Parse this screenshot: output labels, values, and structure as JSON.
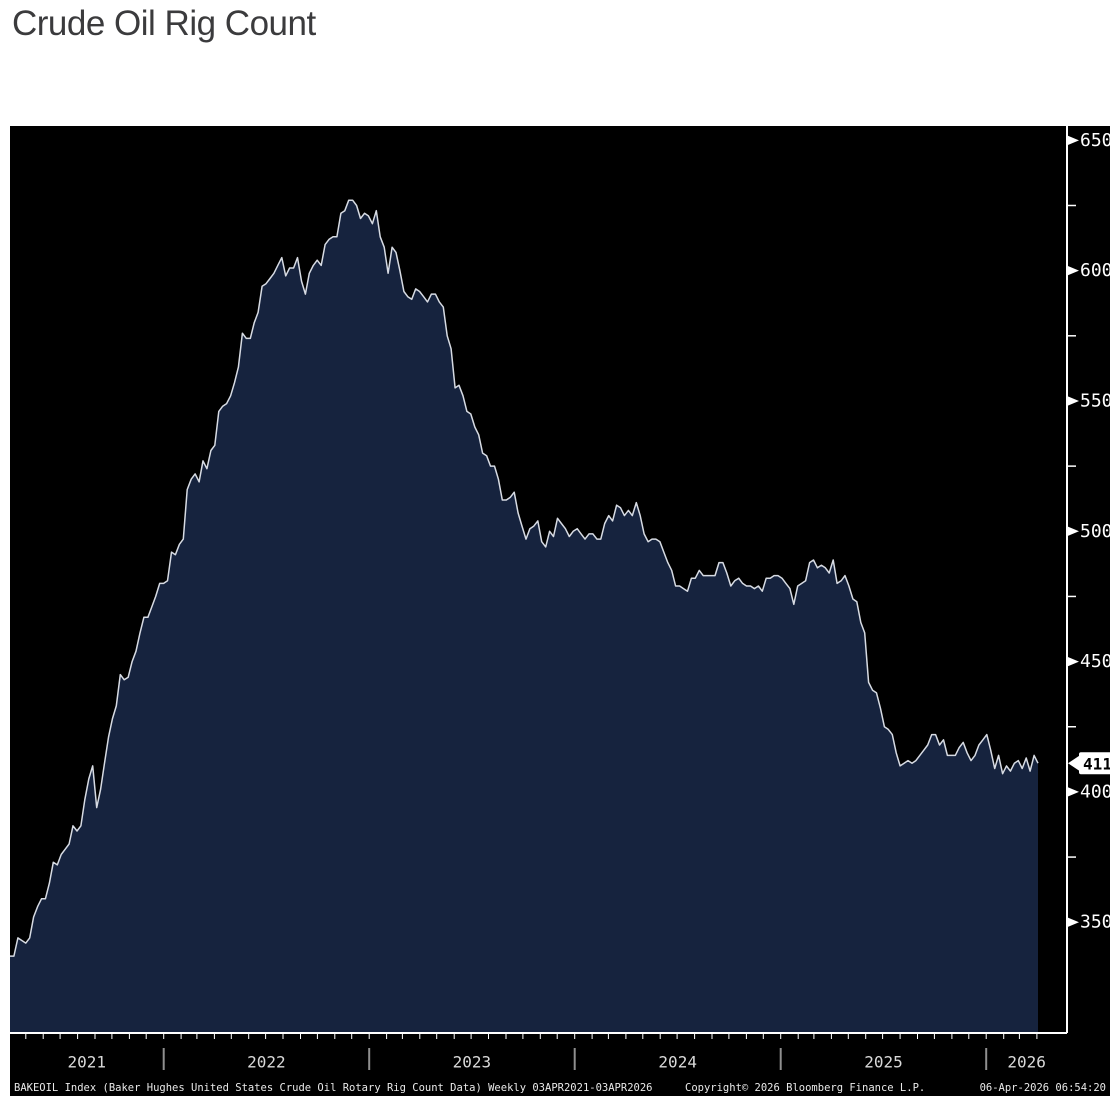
{
  "page": {
    "title": "Crude Oil Rig Count"
  },
  "chart_data": {
    "type": "area",
    "title": "Crude Oil Rig Count",
    "frequency": "weekly",
    "x_start": "2021-04-03",
    "x_end": "2026-04-03",
    "x_year_labels": [
      "2021",
      "2022",
      "2023",
      "2024",
      "2025",
      "2026"
    ],
    "y_ticks_major": [
      350,
      400,
      450,
      500,
      550,
      600,
      650
    ],
    "y_ticks_minor": [
      375,
      425,
      475,
      525,
      575,
      625
    ],
    "ylim": [
      307.5,
      655.5
    ],
    "grid": false,
    "legend_position": "none",
    "last_value": 411,
    "colors": {
      "background": "#000000",
      "area_fill": "#16233e",
      "line": "#d7dbe3",
      "axis": "#ffffff",
      "year_label": "#d9d9d9",
      "separator": "#8f8f8f",
      "flag_bg": "#ffffff",
      "flag_text": "#000000"
    },
    "series": [
      {
        "name": "BAKEOIL Index",
        "values": [
          337,
          337,
          344,
          343,
          342,
          344,
          352,
          356,
          359,
          359,
          365,
          373,
          372,
          376,
          378,
          380,
          387,
          385,
          387,
          397,
          405,
          410,
          394,
          401,
          411,
          421,
          428,
          433,
          445,
          443,
          444,
          450,
          454,
          461,
          467,
          467,
          471,
          475,
          480,
          480,
          481,
          492,
          491,
          495,
          497,
          516,
          520,
          522,
          519,
          527,
          524,
          531,
          533,
          546,
          548,
          549,
          552,
          557,
          563,
          576,
          574,
          574,
          580,
          584,
          594,
          595,
          597,
          599,
          602,
          605,
          598,
          601,
          601,
          605,
          596,
          591,
          599,
          602,
          604,
          602,
          610,
          612,
          613,
          613,
          622,
          623,
          627,
          627,
          625,
          620,
          622,
          621,
          618,
          623,
          613,
          609,
          599,
          609,
          607,
          600,
          592,
          590,
          589,
          593,
          592,
          590,
          588,
          591,
          591,
          588,
          586,
          575,
          570,
          555,
          556,
          552,
          546,
          545,
          540,
          537,
          530,
          529,
          525,
          525,
          520,
          512,
          512,
          513,
          515,
          507,
          502,
          497,
          501,
          502,
          504,
          496,
          494,
          500,
          498,
          505,
          503,
          501,
          498,
          500,
          501,
          499,
          497,
          499,
          499,
          497,
          497,
          503,
          506,
          504,
          510,
          509,
          506,
          508,
          506,
          511,
          506,
          499,
          496,
          497,
          497,
          496,
          492,
          488,
          485,
          479,
          479,
          478,
          477,
          482,
          482,
          485,
          483,
          483,
          483,
          483,
          488,
          488,
          484,
          479,
          481,
          482,
          480,
          479,
          479,
          478,
          479,
          477,
          482,
          482,
          483,
          483,
          482,
          480,
          478,
          472,
          479,
          480,
          481,
          488,
          489,
          486,
          487,
          486,
          484,
          489,
          480,
          481,
          483,
          479,
          474,
          473,
          465,
          461,
          442,
          439,
          438,
          432,
          425,
          424,
          422,
          415,
          410,
          411,
          412,
          411,
          412,
          414,
          416,
          418,
          422,
          422,
          418,
          420,
          414,
          414,
          414,
          417,
          419,
          415,
          412,
          414,
          418,
          420,
          422,
          416,
          409,
          414,
          407,
          410,
          408,
          411,
          412,
          409,
          413,
          408,
          414,
          411
        ]
      }
    ]
  },
  "footer": {
    "left": "BAKEOIL Index (Baker Hughes United States Crude Oil Rotary Rig Count Data) Weekly 03APR2021-03APR2026",
    "center": "Copyright© 2026 Bloomberg Finance L.P.",
    "right": "06-Apr-2026 06:54:20"
  }
}
